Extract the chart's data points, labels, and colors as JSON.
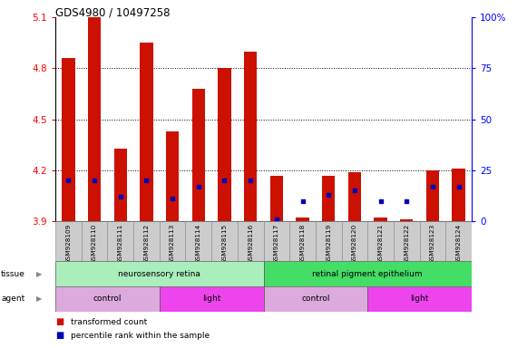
{
  "title": "GDS4980 / 10497258",
  "samples": [
    "GSM928109",
    "GSM928110",
    "GSM928111",
    "GSM928112",
    "GSM928113",
    "GSM928114",
    "GSM928115",
    "GSM928116",
    "GSM928117",
    "GSM928118",
    "GSM928119",
    "GSM928120",
    "GSM928121",
    "GSM928122",
    "GSM928123",
    "GSM928124"
  ],
  "red_values": [
    4.86,
    5.1,
    4.33,
    4.95,
    4.43,
    4.68,
    4.8,
    4.9,
    4.17,
    3.92,
    4.17,
    4.19,
    3.92,
    3.91,
    4.2,
    4.21
  ],
  "blue_pcts": [
    20,
    20,
    12,
    20,
    11,
    17,
    20,
    20,
    1,
    10,
    13,
    15,
    10,
    10,
    17,
    17
  ],
  "ymin": 3.9,
  "ymax": 5.1,
  "yticks_left": [
    3.9,
    4.2,
    4.5,
    4.8,
    5.1
  ],
  "yticks_right": [
    0,
    25,
    50,
    75,
    100
  ],
  "tissue_groups": [
    {
      "label": "neurosensory retina",
      "start": 0,
      "end": 8,
      "color": "#aaeebb"
    },
    {
      "label": "retinal pigment epithelium",
      "start": 8,
      "end": 16,
      "color": "#44dd66"
    }
  ],
  "agent_groups": [
    {
      "label": "control",
      "start": 0,
      "end": 4,
      "color": "#ddaadd"
    },
    {
      "label": "light",
      "start": 4,
      "end": 8,
      "color": "#ee44ee"
    },
    {
      "label": "control",
      "start": 8,
      "end": 12,
      "color": "#ddaadd"
    },
    {
      "label": "light",
      "start": 12,
      "end": 16,
      "color": "#ee44ee"
    }
  ],
  "bar_color": "#cc1100",
  "dot_color": "#0000bb",
  "bar_width": 0.5,
  "grid_lines": [
    4.2,
    4.5,
    4.8
  ],
  "legend_items": [
    {
      "label": "transformed count",
      "color": "#cc1100"
    },
    {
      "label": "percentile rank within the sample",
      "color": "#0000bb"
    }
  ]
}
